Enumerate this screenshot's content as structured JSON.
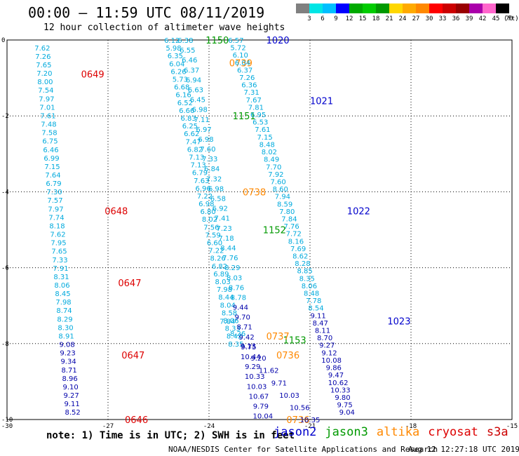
{
  "header": {
    "title": "00:00 – 11:59 UTC 08/11/2019",
    "subtitle": "12 hour collection of altimeter wave heights"
  },
  "legend": {
    "labels": [
      "3",
      "6",
      "9",
      "12",
      "15",
      "18",
      "21",
      "24",
      "27",
      "30",
      "33",
      "36",
      "39",
      "42",
      "45",
      "70"
    ],
    "colors": [
      "#808080",
      "#00e5e5",
      "#00bfff",
      "#0000ff",
      "#00aa00",
      "#00cc00",
      "#009900",
      "#ffd700",
      "#ffaa00",
      "#ff8800",
      "#ff0000",
      "#cc0000",
      "#990000",
      "#aa00aa",
      "#ff66cc",
      "#000000"
    ],
    "unit": "(ft)"
  },
  "footer": {
    "note": "note:  1) Time is in UTC;  2) SWH is in feet",
    "satellites": [
      {
        "name": "jason2",
        "color": "#0000cc"
      },
      {
        "name": "jason3",
        "color": "#009900"
      },
      {
        "name": "altika",
        "color": "#ff8800"
      },
      {
        "name": "cryosat",
        "color": "#dd0000"
      },
      {
        "name": "s3a",
        "color": "#cc0000"
      }
    ],
    "credit": "NOAA/NESDIS Center for Satellite Applications and Research",
    "timestamp": "Aug 12 12:27:18 UTC 2019"
  },
  "chart_data": {
    "type": "scatter",
    "title": "00:00 – 11:59 UTC 08/11/2019",
    "subtitle": "12 hour collection of altimeter wave heights",
    "xlabel": "",
    "ylabel": "",
    "xlim": [
      -30,
      -15
    ],
    "ylim": [
      -10,
      0
    ],
    "xticks": [
      "-30",
      "-27",
      "-24",
      "-21",
      "-18",
      "-15"
    ],
    "yticks": [
      "0",
      "-2",
      "-4",
      "-6",
      "-8",
      "-10"
    ],
    "grid": true,
    "tracks": [
      {
        "satellite": "cryosat",
        "color": "#dd0000",
        "lon_start": -28.95,
        "lon_end": -28.05,
        "lat_start": -0.2,
        "lat_end": -9.8,
        "label_color": "#00aadd",
        "values": [
          "7.62",
          "7.26",
          "7.65",
          "7.20",
          "8.00",
          "7.54",
          "7.97",
          "7.01",
          "7.61",
          "7.48",
          "7.58",
          "6.75",
          "6.46",
          "6.99",
          "7.15",
          "7.64",
          "6.79",
          "7.30",
          "7.57",
          "7.97",
          "7.74",
          "8.18",
          "7.62",
          "7.95",
          "7.65",
          "7.33",
          "7.91",
          "8.31",
          "8.06",
          "8.45",
          "7.98",
          "8.74",
          "8.29",
          "8.30",
          "8.91",
          "9.08",
          "9.23",
          "9.34",
          "8.71",
          "8.96",
          "9.10",
          "9.27",
          "9.11",
          "8.52"
        ],
        "dark_from": 35,
        "times": [
          {
            "t": "0649",
            "lon": -27.8,
            "lat": -0.9
          },
          {
            "t": "0648",
            "lon": -27.1,
            "lat": -4.5
          },
          {
            "t": "0647",
            "lon": -26.7,
            "lat": -6.4
          },
          {
            "t": "0647",
            "lon": -26.6,
            "lat": -8.3
          },
          {
            "t": "0646",
            "lon": -26.5,
            "lat": -10.0
          }
        ]
      },
      {
        "satellite": "jason3",
        "color": "#009900",
        "lon_start": -25.1,
        "lon_end": -23.2,
        "lat_start": 0.0,
        "lat_end": -8.0,
        "label_color": "#00aadd",
        "values": [
          "6.12",
          "5.98",
          "6.35",
          "6.04",
          "6.26",
          "5.73",
          "6.68",
          "6.16",
          "6.52",
          "6.66",
          "6.83",
          "6.25",
          "6.62",
          "7.47",
          "6.82",
          "7.13",
          "7.13",
          "6.79",
          "7.63",
          "6.96",
          "7.22",
          "6.98",
          "6.80",
          "8.02",
          "7.56",
          "7.59",
          "6.60",
          "7.22",
          "8.26",
          "6.82",
          "6.89",
          "8.03",
          "7.98",
          "8.44",
          "8.04",
          "8.58",
          "8.06",
          "8.33",
          "8.42",
          "8.35"
        ],
        "dark_from": 99,
        "times": [
          {
            "t": "1150",
            "lon": -24.1,
            "lat": 0.0
          },
          {
            "t": "1151",
            "lon": -23.3,
            "lat": -2.0
          },
          {
            "t": "1152",
            "lon": -22.4,
            "lat": -5.0
          },
          {
            "t": "1153",
            "lon": -21.8,
            "lat": -7.9
          }
        ]
      },
      {
        "satellite": "altika",
        "color": "#ff8800",
        "lon_start": -24.7,
        "lon_end": -22.4,
        "lat_start": 0.0,
        "lat_end": -9.9,
        "label_color": "#00aadd",
        "values": [
          "6.38",
          "6.55",
          "6.46",
          "6.37",
          "6.94",
          "6.63",
          "6.45",
          "6.98",
          "7.11",
          "6.97",
          "6.98",
          "7.60",
          "7.33",
          "6.84",
          "7.32",
          "6.98",
          "6.58",
          "6.92",
          "7.41",
          "7.23",
          "7.18",
          "8.44",
          "7.76",
          "8.29",
          "8.03",
          "8.76",
          "8.78",
          "9.44",
          "9.70",
          "8.71",
          "9.42",
          "9.75",
          "10.44",
          "9.29",
          "10.33",
          "10.03",
          "10.67",
          "9.79",
          "10.04"
        ],
        "dark_from": 27,
        "times": [
          {
            "t": "0739",
            "lon": -23.4,
            "lat": -0.6
          },
          {
            "t": "0738",
            "lon": -23.0,
            "lat": -4.0
          },
          {
            "t": "0737",
            "lon": -22.3,
            "lat": -7.8
          },
          {
            "t": "0736",
            "lon": -22.0,
            "lat": -8.3
          },
          {
            "t": "0736",
            "lon": -21.7,
            "lat": -10.0
          }
        ]
      },
      {
        "satellite": "jason2",
        "color": "#0000cc",
        "lon_start": -23.45,
        "lon_end": -21.0,
        "lat_start": -7.4,
        "lat_end": -10.0,
        "label_color": "#00aadd",
        "values": [
          "7.84",
          "8.26",
          "9.13",
          "9.20",
          "11.62",
          "9.71",
          "10.03",
          "10.56",
          "10.35"
        ],
        "dark_from": 2,
        "times": []
      },
      {
        "satellite": "jason2",
        "color": "#0000cc",
        "lon_start": -23.2,
        "lon_end": -19.9,
        "lat_start": 0.0,
        "lat_end": -9.8,
        "label_color": "#00aadd",
        "values": [
          "6.57",
          "5.72",
          "6.10",
          "6.04",
          "6.37",
          "7.26",
          "6.36",
          "7.31",
          "7.67",
          "7.81",
          "6.95",
          "6.53",
          "7.61",
          "7.15",
          "8.48",
          "8.02",
          "8.49",
          "7.70",
          "7.92",
          "7.60",
          "8.60",
          "7.94",
          "8.59",
          "7.80",
          "7.84",
          "7.76",
          "7.72",
          "8.16",
          "7.69",
          "8.62",
          "8.28",
          "8.85",
          "8.35",
          "8.06",
          "8.48",
          "7.78",
          "8.54",
          "9.11",
          "8.47",
          "8.11",
          "8.70",
          "9.27",
          "9.12",
          "10.08",
          "9.86",
          "9.47",
          "10.62",
          "10.33",
          "9.80",
          "9.75",
          "9.04"
        ],
        "dark_from": 37,
        "times": [
          {
            "t": "1020",
            "lon": -22.3,
            "lat": 0.0
          },
          {
            "t": "1021",
            "lon": -21.0,
            "lat": -1.6
          },
          {
            "t": "1022",
            "lon": -19.9,
            "lat": -4.5
          },
          {
            "t": "1023",
            "lon": -18.7,
            "lat": -7.4
          }
        ]
      }
    ]
  }
}
